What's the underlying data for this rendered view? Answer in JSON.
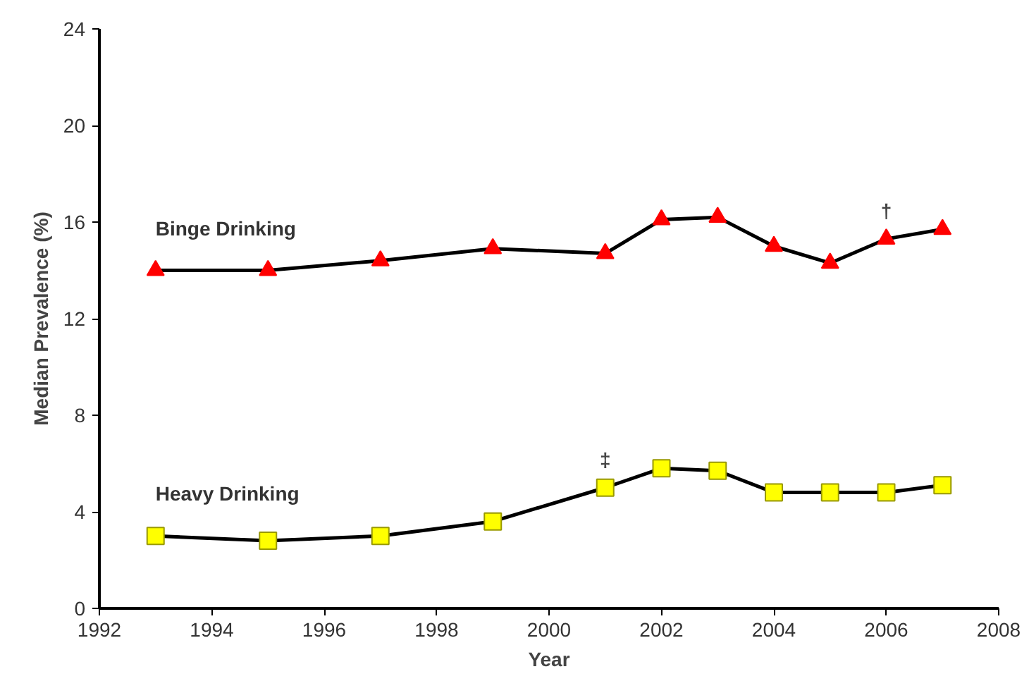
{
  "chart_data": {
    "type": "line",
    "xlabel": "Year",
    "ylabel": "Median Prevalence (%)",
    "x": [
      1993,
      1995,
      1997,
      1999,
      2001,
      2002,
      2003,
      2004,
      2005,
      2006,
      2007
    ],
    "series": [
      {
        "name": "Binge Drinking",
        "color": "#ff0000",
        "marker": "triangle",
        "values": [
          14.0,
          14.0,
          14.4,
          14.9,
          14.7,
          16.1,
          16.2,
          15.0,
          14.3,
          15.3,
          15.7
        ]
      },
      {
        "name": "Heavy Drinking",
        "color": "#ffff00",
        "marker": "square",
        "values": [
          3.0,
          2.8,
          3.0,
          3.6,
          5.0,
          5.8,
          5.7,
          4.8,
          4.8,
          4.8,
          5.1
        ]
      }
    ],
    "xlim": [
      1992,
      2008
    ],
    "xticks": [
      1992,
      1994,
      1996,
      1998,
      2000,
      2002,
      2004,
      2006,
      2008
    ],
    "ylim": [
      0,
      24
    ],
    "yticks": [
      0,
      4,
      8,
      12,
      16,
      20,
      24
    ],
    "annotations": [
      {
        "text": "†",
        "x": 2006,
        "y": 15.3
      },
      {
        "text": "‡",
        "x": 2001,
        "y": 5.0
      }
    ],
    "grid": false,
    "line_style": "solid"
  }
}
